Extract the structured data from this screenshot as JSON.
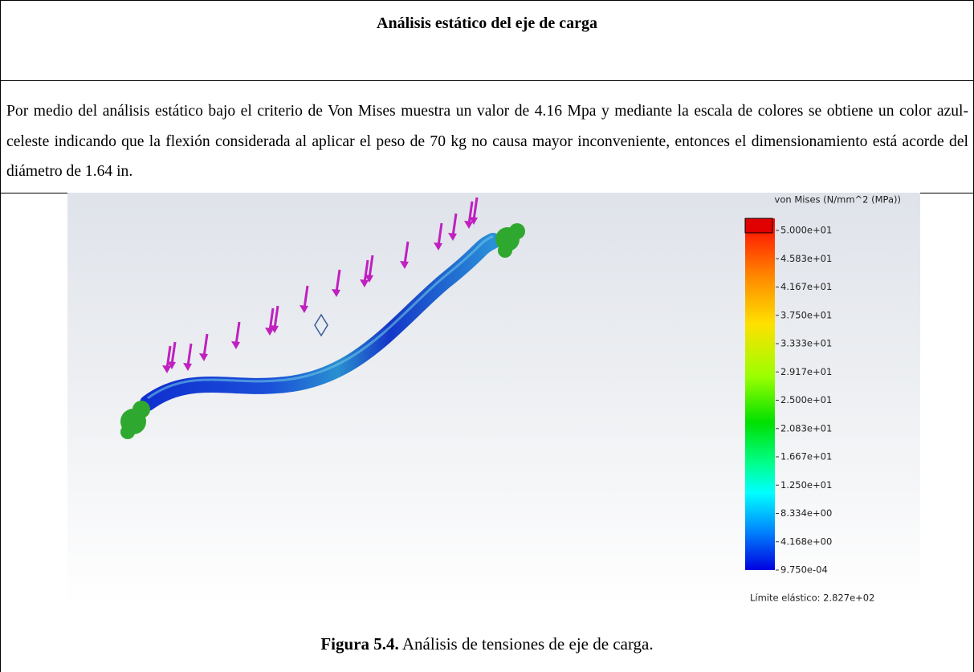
{
  "header": {
    "title": "Análisis estático del eje de carga"
  },
  "body": {
    "paragraph": "Por medio del análisis estático bajo el criterio de Von Mises muestra un valor de 4.16 Mpa y mediante la escala de colores se obtiene un color azul-celeste indicando que la flexión considerada al aplicar el peso de 70 kg no causa mayor inconveniente, entonces el dimensionamiento está acorde del diámetro de 1.64 in."
  },
  "figure": {
    "legend_title": "von Mises (N/mm^2 (MPa))",
    "legend_labels": [
      "5.000e+01",
      "4.583e+01",
      "4.167e+01",
      "3.750e+01",
      "3.333e+01",
      "2.917e+01",
      "2.500e+01",
      "2.083e+01",
      "1.667e+01",
      "1.250e+01",
      "8.334e+00",
      "4.168e+00",
      "9.750e-04"
    ],
    "yield_note": "Límite elástico: 2.827e+02"
  },
  "caption": {
    "label": "Figura 5.4.",
    "text": " Análisis de tensiones de eje de carga."
  }
}
